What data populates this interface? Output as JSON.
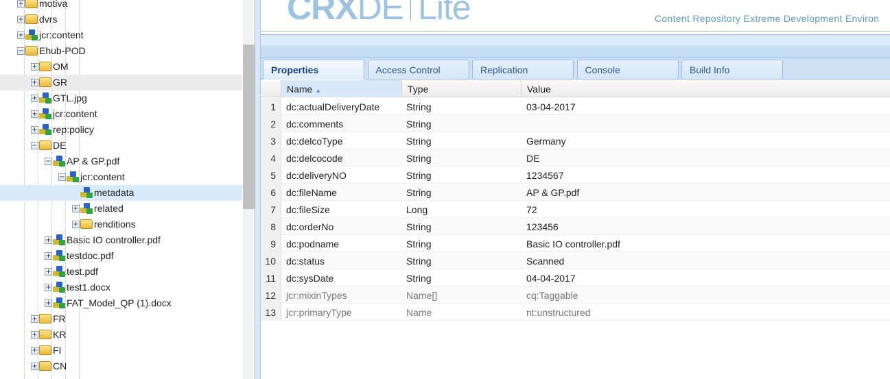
{
  "tree": {
    "items": [
      {
        "label": "motiva",
        "level": 0,
        "type": "folder",
        "toggle": "plus"
      },
      {
        "label": "dvrs",
        "level": 0,
        "type": "folder",
        "toggle": "plus"
      },
      {
        "label": "jcr:content",
        "level": 0,
        "type": "node",
        "toggle": "plus"
      },
      {
        "label": "Ehub-POD",
        "level": 0,
        "type": "folder",
        "toggle": "minus"
      },
      {
        "label": "OM",
        "level": 1,
        "type": "folder",
        "toggle": "plus"
      },
      {
        "label": "GR",
        "level": 1,
        "type": "folder",
        "toggle": "plus",
        "state": "hover"
      },
      {
        "label": "GTL.jpg",
        "level": 1,
        "type": "node",
        "toggle": "plus"
      },
      {
        "label": "jcr:content",
        "level": 1,
        "type": "node",
        "toggle": "plus"
      },
      {
        "label": "rep:policy",
        "level": 1,
        "type": "node",
        "toggle": "plus"
      },
      {
        "label": "DE",
        "level": 1,
        "type": "folder",
        "toggle": "minus"
      },
      {
        "label": "AP & GP.pdf",
        "level": 2,
        "type": "node",
        "toggle": "minus"
      },
      {
        "label": "jcr:content",
        "level": 3,
        "type": "node",
        "toggle": "minus"
      },
      {
        "label": "metadata",
        "level": 4,
        "type": "node",
        "toggle": "none",
        "state": "selected"
      },
      {
        "label": "related",
        "level": 4,
        "type": "node",
        "toggle": "plus"
      },
      {
        "label": "renditions",
        "level": 4,
        "type": "folder",
        "toggle": "plus"
      },
      {
        "label": "Basic IO controller.pdf",
        "level": 2,
        "type": "node",
        "toggle": "plus"
      },
      {
        "label": "testdoc.pdf",
        "level": 2,
        "type": "node",
        "toggle": "plus"
      },
      {
        "label": "test.pdf",
        "level": 2,
        "type": "node",
        "toggle": "plus"
      },
      {
        "label": "test1.docx",
        "level": 2,
        "type": "node",
        "toggle": "plus"
      },
      {
        "label": "FAT_Model_QP (1).docx",
        "level": 2,
        "type": "node",
        "toggle": "plus"
      },
      {
        "label": "FR",
        "level": 1,
        "type": "folder",
        "toggle": "plus"
      },
      {
        "label": "KR",
        "level": 1,
        "type": "folder",
        "toggle": "plus"
      },
      {
        "label": "FI",
        "level": 1,
        "type": "folder",
        "toggle": "plus"
      },
      {
        "label": "CN",
        "level": 1,
        "type": "folder",
        "toggle": "plus"
      }
    ]
  },
  "header": {
    "logo_bold": "CRX",
    "logo_light": "DE",
    "logo_lite": "Lite",
    "tagline": "Content Repository Extreme Development Environ"
  },
  "tabs": [
    {
      "label": "Properties",
      "active": true
    },
    {
      "label": "Access Control"
    },
    {
      "label": "Replication"
    },
    {
      "label": "Console"
    },
    {
      "label": "Build Info"
    }
  ],
  "grid": {
    "columns": {
      "name": "Name",
      "type": "Type",
      "value": "Value"
    },
    "sort": "name-ascending",
    "rows": [
      {
        "n": "1",
        "name": "dc:actualDeliveryDate",
        "type": "String",
        "value": "03-04-2017"
      },
      {
        "n": "2",
        "name": "dc:comments",
        "type": "String",
        "value": ""
      },
      {
        "n": "3",
        "name": "dc:delcoType",
        "type": "String",
        "value": "Germany"
      },
      {
        "n": "4",
        "name": "dc:delcocode",
        "type": "String",
        "value": "DE"
      },
      {
        "n": "5",
        "name": "dc:deliveryNO",
        "type": "String",
        "value": "1234567"
      },
      {
        "n": "6",
        "name": "dc:fileName",
        "type": "String",
        "value": "AP & GP.pdf"
      },
      {
        "n": "7",
        "name": "dc:fileSize",
        "type": "Long",
        "value": "72"
      },
      {
        "n": "8",
        "name": "dc:orderNo",
        "type": "String",
        "value": "123456"
      },
      {
        "n": "9",
        "name": "dc:podname",
        "type": "String",
        "value": "Basic IO controller.pdf"
      },
      {
        "n": "10",
        "name": "dc:status",
        "type": "String",
        "value": "Scanned"
      },
      {
        "n": "11",
        "name": "dc:sysDate",
        "type": "String",
        "value": "04-04-2017"
      },
      {
        "n": "12",
        "name": "jcr:mixinTypes",
        "type": "Name[]",
        "value": "cq:Taggable",
        "system": true
      },
      {
        "n": "13",
        "name": "jcr:primaryType",
        "type": "Name",
        "value": "nt:unstructured",
        "system": true
      }
    ]
  },
  "colors": {
    "accent": "#15428b",
    "selected_row": "#d9ebfb",
    "logo": "#9ec3e0"
  }
}
